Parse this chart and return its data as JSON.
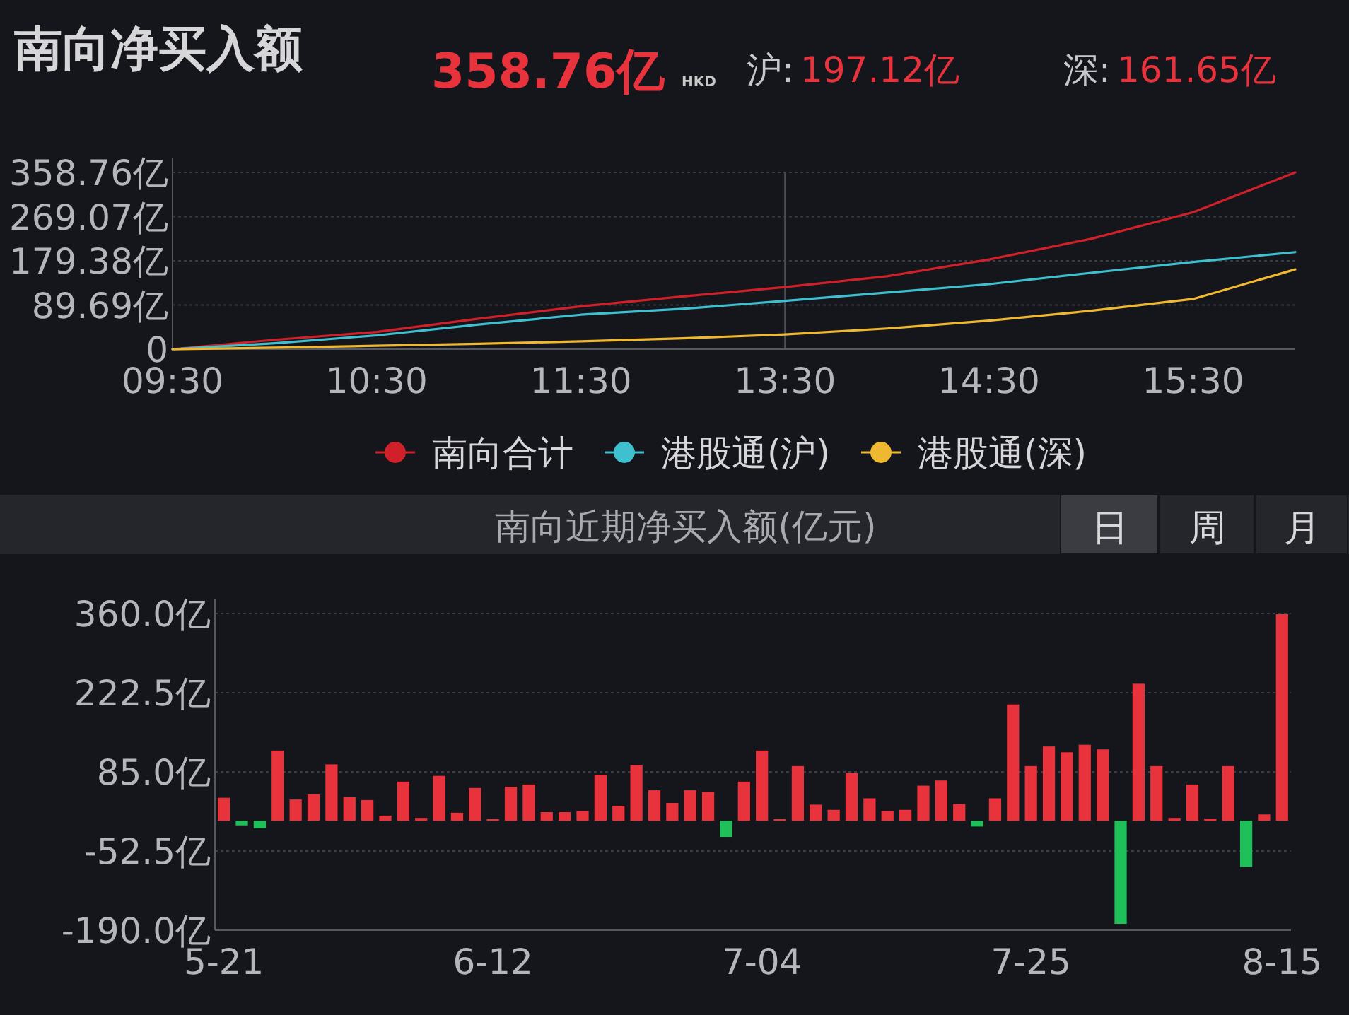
{
  "chart_data": [
    {
      "type": "line",
      "title": "南向净买入额",
      "annotations": [
        "358.76亿",
        "HKD",
        "沪:",
        "197.12亿",
        "深:",
        "161.65亿"
      ],
      "categories": [
        "09:30",
        null,
        "10:30",
        null,
        "11:30",
        null,
        "13:30",
        null,
        "14:30",
        null,
        "15:30",
        null
      ],
      "ylim": [
        0,
        358.76
      ],
      "yticks": [
        0,
        {
          "value": 89.69,
          "label": "89.69亿"
        },
        {
          "value": 179.38,
          "label": "179.38亿"
        },
        {
          "value": 269.07,
          "label": "269.07亿"
        },
        {
          "value": 358.76,
          "label": "358.76亿"
        }
      ],
      "grid": "y",
      "legend": "bottom",
      "line_style": "solid",
      "ref_lines": [
        {
          "axis": "x",
          "value": "13:30",
          "color": "#4a4e55"
        }
      ],
      "series": [
        {
          "name": "南向合计",
          "color": "#d0202a",
          "values": [
            0,
            19,
            35,
            62,
            87,
            107,
            126,
            148,
            182,
            224,
            278,
            358.76
          ]
        },
        {
          "name": "港股通(沪)",
          "color": "#3fc0d0",
          "values": [
            0,
            12,
            28,
            50,
            70,
            82,
            98,
            115,
            132,
            155,
            177,
            197
          ]
        },
        {
          "name": "港股通(深)",
          "color": "#f0b830",
          "values": [
            0,
            3,
            7,
            11,
            16,
            22,
            30,
            42,
            58,
            78,
            102,
            162
          ]
        }
      ]
    },
    {
      "type": "bar",
      "title": "南向近期净买入额(亿元)",
      "annotations": [
        "日",
        "周",
        "月"
      ],
      "categories": [
        "5-21",
        null,
        null,
        null,
        null,
        null,
        null,
        null,
        null,
        null,
        null,
        null,
        null,
        null,
        null,
        "6-12",
        null,
        null,
        null,
        null,
        null,
        null,
        null,
        null,
        null,
        null,
        null,
        null,
        null,
        null,
        "7-04",
        null,
        null,
        null,
        null,
        null,
        null,
        null,
        null,
        null,
        null,
        null,
        null,
        null,
        null,
        "7-25",
        null,
        null,
        null,
        null,
        null,
        null,
        null,
        null,
        null,
        null,
        null,
        null,
        null,
        "8-15"
      ],
      "values": [
        40,
        -8,
        -13,
        122,
        37,
        46,
        98,
        41,
        36,
        9,
        68,
        5,
        78,
        14,
        57,
        3,
        59,
        63,
        15,
        15,
        17,
        80,
        26,
        97,
        53,
        31,
        53,
        50,
        -28,
        68,
        122,
        3,
        95,
        28,
        19,
        83,
        39,
        17,
        19,
        61,
        70,
        29,
        -10,
        39,
        202,
        95,
        129,
        119,
        132,
        124,
        -179,
        238,
        95,
        5,
        63,
        4,
        95,
        -80,
        11,
        359
      ],
      "colors": [
        "#e8323c",
        "#1fbf5a",
        "#1fbf5a",
        "#e8323c",
        "#e8323c",
        "#e8323c",
        "#e8323c",
        "#e8323c",
        "#e8323c",
        "#e8323c",
        "#e8323c",
        "#e8323c",
        "#e8323c",
        "#e8323c",
        "#e8323c",
        "#e8323c",
        "#e8323c",
        "#e8323c",
        "#e8323c",
        "#e8323c",
        "#e8323c",
        "#e8323c",
        "#e8323c",
        "#e8323c",
        "#e8323c",
        "#e8323c",
        "#e8323c",
        "#e8323c",
        "#1fbf5a",
        "#e8323c",
        "#e8323c",
        "#e8323c",
        "#e8323c",
        "#e8323c",
        "#e8323c",
        "#e8323c",
        "#e8323c",
        "#e8323c",
        "#e8323c",
        "#e8323c",
        "#e8323c",
        "#e8323c",
        "#1fbf5a",
        "#e8323c",
        "#e8323c",
        "#e8323c",
        "#e8323c",
        "#e8323c",
        "#e8323c",
        "#e8323c",
        "#1fbf5a",
        "#e8323c",
        "#e8323c",
        "#e8323c",
        "#e8323c",
        "#e8323c",
        "#e8323c",
        "#1fbf5a",
        "#e8323c",
        "#e8323c"
      ],
      "ylim": [
        -190,
        360
      ],
      "yticks": [
        {
          "value": -190,
          "label": "-190.0亿"
        },
        {
          "value": -52.5,
          "label": "-52.5亿"
        },
        {
          "value": 85,
          "label": "85.0亿"
        },
        {
          "value": 222.5,
          "label": "222.5亿"
        },
        {
          "value": 360,
          "label": "360.0亿"
        }
      ],
      "grid": "y"
    }
  ]
}
